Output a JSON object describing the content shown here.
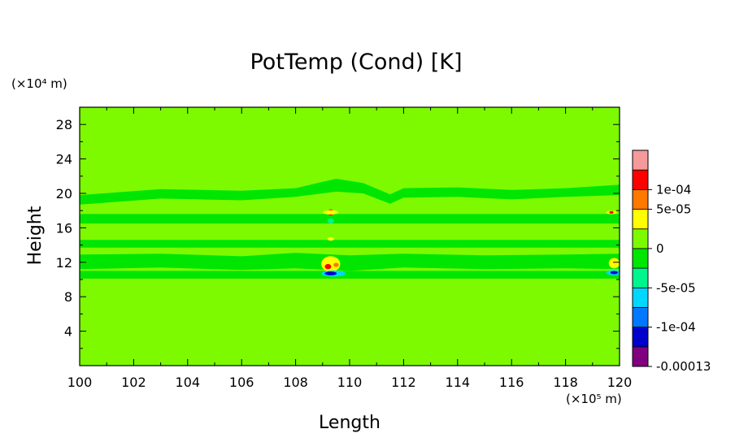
{
  "chart_data": {
    "type": "heatmap",
    "title": "PotTemp (Cond) [K]",
    "xlabel": "Length",
    "ylabel": "Height",
    "x_unit_label": "(×10⁵ m)",
    "y_unit_label": "(×10⁴ m)",
    "xlim": [
      100,
      120
    ],
    "ylim": [
      0,
      30
    ],
    "x_ticks": [
      "100",
      "102",
      "104",
      "106",
      "108",
      "110",
      "112",
      "114",
      "116",
      "118",
      "120"
    ],
    "y_ticks": [
      "4",
      "8",
      "12",
      "16",
      "20",
      "24",
      "28"
    ],
    "x_tick_values": [
      100,
      102,
      104,
      106,
      108,
      110,
      112,
      114,
      116,
      118,
      120
    ],
    "y_tick_values": [
      4,
      8,
      12,
      16,
      20,
      24,
      28
    ],
    "background_value_color": "#7dfa00",
    "colorbar": {
      "levels": [
        {
          "color": "#800080"
        },
        {
          "color": "#0000cd"
        },
        {
          "color": "#0078ff"
        },
        {
          "color": "#00d7ff"
        },
        {
          "color": "#00f58c"
        },
        {
          "color": "#00e600"
        },
        {
          "color": "#7dfa00"
        },
        {
          "color": "#ffff00"
        },
        {
          "color": "#ff7800"
        },
        {
          "color": "#ff0000"
        },
        {
          "color": "#f49a9a"
        }
      ],
      "labels": [
        {
          "text": "1e-04",
          "value": 0.0001
        },
        {
          "text": "5e-05",
          "value": 5e-05
        },
        {
          "text": "0",
          "value": 0
        },
        {
          "text": "-5e-05",
          "value": -5e-05
        },
        {
          "text": "-1e-04",
          "value": -0.0001
        },
        {
          "text": "-0.00013",
          "value": -0.00013
        }
      ]
    },
    "bands": [
      {
        "name": "band-upper",
        "x": [
          100,
          103,
          106,
          108,
          109.5,
          110.5,
          111.5,
          112,
          114,
          116,
          118,
          120
        ],
        "y_bottom": [
          18.7,
          19.4,
          19.2,
          19.6,
          20.2,
          20.0,
          18.8,
          19.5,
          19.6,
          19.3,
          19.6,
          19.8
        ],
        "y_top": [
          19.8,
          20.5,
          20.3,
          20.6,
          21.7,
          21.2,
          19.9,
          20.6,
          20.7,
          20.4,
          20.6,
          21.0
        ],
        "color": "#00e600"
      },
      {
        "name": "band-17",
        "x": [
          100,
          120
        ],
        "y_bottom": [
          16.5,
          16.5
        ],
        "y_top": [
          17.6,
          17.6
        ],
        "color": "#00e600"
      },
      {
        "name": "band-14",
        "x": [
          100,
          120
        ],
        "y_bottom": [
          13.7,
          13.7
        ],
        "y_top": [
          14.6,
          14.6
        ],
        "color": "#00e600"
      },
      {
        "name": "band-12",
        "x": [
          100,
          103,
          106,
          108,
          110,
          112,
          115,
          118,
          120
        ],
        "y_bottom": [
          11.2,
          11.4,
          11.1,
          11.3,
          11.0,
          11.4,
          11.2,
          11.3,
          11.2
        ],
        "y_top": [
          12.9,
          13.0,
          12.7,
          13.1,
          12.8,
          13.0,
          12.8,
          12.9,
          13.0
        ],
        "color": "#00e600"
      },
      {
        "name": "band-10.8",
        "x": [
          100,
          120
        ],
        "y_bottom": [
          10.1,
          10.1
        ],
        "y_top": [
          11.0,
          11.0
        ],
        "color": "#00e600"
      }
    ],
    "features": [
      {
        "x": 109.3,
        "y": 17.8,
        "rx": 0.12,
        "ry": 0.35,
        "color": "#ff0000"
      },
      {
        "x": 109.3,
        "y": 17.8,
        "rx": 0.28,
        "ry": 0.25,
        "color": "#ffff00"
      },
      {
        "x": 109.3,
        "y": 16.8,
        "rx": 0.12,
        "ry": 0.3,
        "color": "#00f58c"
      },
      {
        "x": 109.3,
        "y": 14.7,
        "rx": 0.12,
        "ry": 0.2,
        "color": "#ffff00"
      },
      {
        "x": 109.3,
        "y": 11.8,
        "rx": 0.35,
        "ry": 0.9,
        "color": "#ffff00"
      },
      {
        "x": 109.2,
        "y": 11.5,
        "rx": 0.12,
        "ry": 0.3,
        "color": "#ff0000"
      },
      {
        "x": 109.5,
        "y": 11.7,
        "rx": 0.1,
        "ry": 0.25,
        "color": "#ff7800"
      },
      {
        "x": 109.4,
        "y": 10.7,
        "rx": 0.45,
        "ry": 0.35,
        "color": "#00d7ff"
      },
      {
        "x": 109.3,
        "y": 10.7,
        "rx": 0.22,
        "ry": 0.22,
        "color": "#0000cd"
      },
      {
        "x": 119.7,
        "y": 17.8,
        "rx": 0.2,
        "ry": 0.2,
        "color": "#ffff00"
      },
      {
        "x": 119.7,
        "y": 17.8,
        "rx": 0.08,
        "ry": 0.15,
        "color": "#ff0000"
      },
      {
        "x": 119.8,
        "y": 11.9,
        "rx": 0.2,
        "ry": 0.6,
        "color": "#ffff00"
      },
      {
        "x": 119.8,
        "y": 10.8,
        "rx": 0.3,
        "ry": 0.3,
        "color": "#00d7ff"
      },
      {
        "x": 119.8,
        "y": 10.8,
        "rx": 0.14,
        "ry": 0.18,
        "color": "#0000cd"
      }
    ]
  }
}
